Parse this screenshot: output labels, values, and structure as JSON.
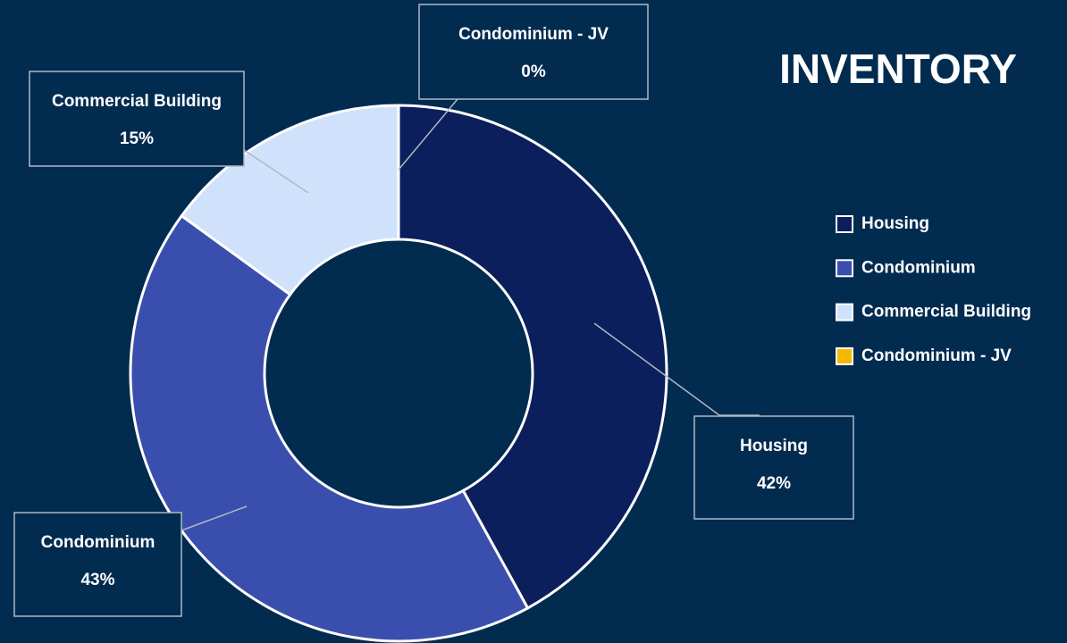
{
  "chart_data": {
    "type": "donut",
    "title": "INVENTORY",
    "categories": [
      "Housing",
      "Condominium",
      "Commercial Building",
      "Condominium - JV"
    ],
    "values": [
      42,
      43,
      15,
      0
    ],
    "value_labels": [
      "42%",
      "43%",
      "15%",
      "0%"
    ],
    "colors": [
      "#0b1f5c",
      "#3a4fad",
      "#d0e2fb",
      "#f5b800"
    ],
    "legend": "right"
  }
}
